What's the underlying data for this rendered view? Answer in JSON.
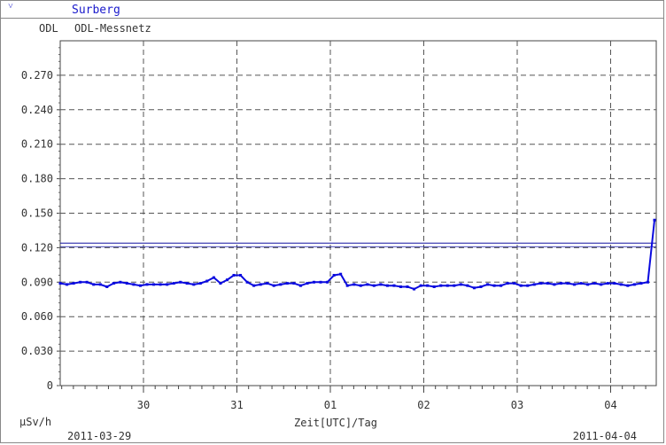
{
  "window": {
    "station_title": "Surberg",
    "measurement_type": "ODL",
    "network_name": "ODL-Messnetz"
  },
  "chart_data": {
    "type": "line",
    "ylabel": "µSv/h",
    "xlabel": "Zeit[UTC]/Tag",
    "start_date": "2011-03-29",
    "end_date": "2011-04-04",
    "y_ticks": [
      "0",
      "0.030",
      "0.060",
      "0.090",
      "0.120",
      "0.150",
      "0.180",
      "0.210",
      "0.240",
      "0.270"
    ],
    "x_ticks": [
      "30",
      "31",
      "01",
      "02",
      "03",
      "04"
    ],
    "ylim": [
      0,
      0.3
    ],
    "grid": true,
    "threshold": 0.124,
    "series_color": "#0a0adf",
    "series": [
      {
        "values": [
          0.089,
          0.088,
          0.089,
          0.09,
          0.09,
          0.088,
          0.088,
          0.086,
          0.089,
          0.09,
          0.089,
          0.088,
          0.087,
          0.088,
          0.088,
          0.088,
          0.088,
          0.089,
          0.09,
          0.089,
          0.088,
          0.089,
          0.091,
          0.094,
          0.089,
          0.092,
          0.096,
          0.096,
          0.09,
          0.087,
          0.088,
          0.089,
          0.087,
          0.088,
          0.089,
          0.089,
          0.087,
          0.089,
          0.09,
          0.09,
          0.09,
          0.096,
          0.097,
          0.087,
          0.088,
          0.087,
          0.088,
          0.087,
          0.088,
          0.087,
          0.087,
          0.086,
          0.086,
          0.084,
          0.087,
          0.087,
          0.086,
          0.087,
          0.087,
          0.087,
          0.088,
          0.087,
          0.085,
          0.086,
          0.088,
          0.087,
          0.087,
          0.089,
          0.089,
          0.087,
          0.087,
          0.088,
          0.089,
          0.089,
          0.088,
          0.089,
          0.089,
          0.088,
          0.089,
          0.088,
          0.089,
          0.088,
          0.089,
          0.089,
          0.088,
          0.087,
          0.088,
          0.089,
          0.09,
          0.144
        ]
      }
    ]
  }
}
